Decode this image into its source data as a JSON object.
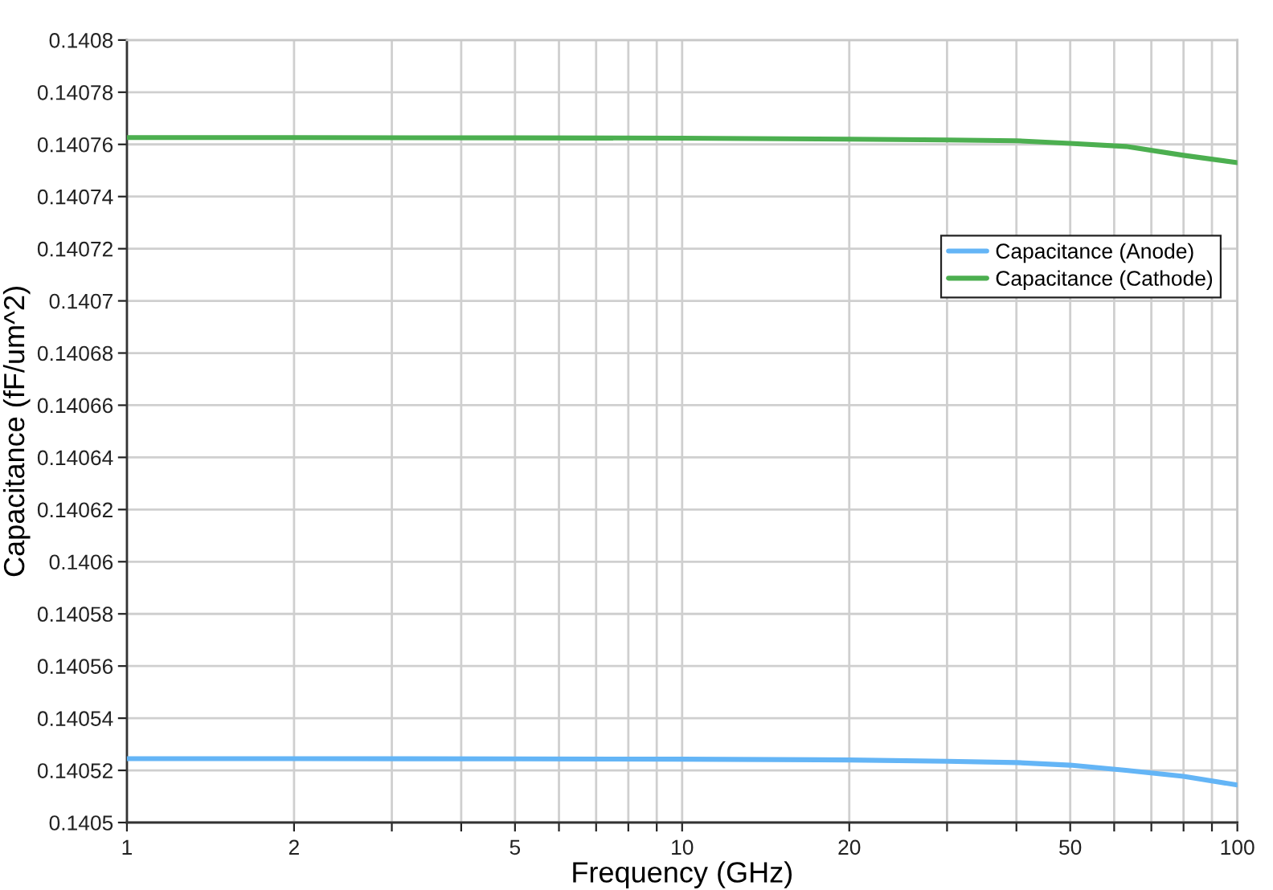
{
  "chart_data": {
    "type": "line",
    "xlabel": "Frequency (GHz)",
    "ylabel": "Capacitance (fF/um^2)",
    "log": "x",
    "grid": true,
    "legend": "top right",
    "marker": "none",
    "line_style": "solid",
    "xlim": [
      1,
      100
    ],
    "xticks": [
      1,
      2,
      {
        "value": 3,
        "label": null
      },
      {
        "value": 4,
        "label": null
      },
      5,
      {
        "value": 6,
        "label": null
      },
      {
        "value": 7,
        "label": null
      },
      {
        "value": 8,
        "label": null
      },
      {
        "value": 9,
        "label": null
      },
      10,
      20,
      {
        "value": 30,
        "label": null
      },
      {
        "value": 40,
        "label": null
      },
      50,
      {
        "value": 60,
        "label": null
      },
      {
        "value": 70,
        "label": null
      },
      {
        "value": 80,
        "label": null
      },
      {
        "value": 90,
        "label": null
      },
      100
    ],
    "ylim": [
      0.1405,
      0.1408
    ],
    "yticks": [
      0.1405,
      0.14052,
      0.14054,
      0.14056,
      0.14058,
      0.1406,
      0.14062,
      0.14064,
      0.14066,
      0.14068,
      0.1407,
      0.14072,
      0.14074,
      0.14076,
      0.14078,
      0.1408
    ],
    "series": [
      {
        "name": "Capacitance (Anode)",
        "color": "#64b5f6",
        "x": [
          1,
          2,
          5,
          10,
          20,
          30,
          40,
          50,
          63,
          80,
          100
        ],
        "values": [
          0.1405245,
          0.1405245,
          0.1405244,
          0.1405243,
          0.140524,
          0.1405235,
          0.140523,
          0.140522,
          0.14052,
          0.1405177,
          0.1405144
        ]
      },
      {
        "name": "Capacitance (Cathode)",
        "color": "#4caf50",
        "x": [
          1,
          2,
          5,
          10,
          20,
          30,
          40,
          50,
          63,
          80,
          100
        ],
        "values": [
          0.1407626,
          0.1407626,
          0.1407625,
          0.1407624,
          0.140762,
          0.1407617,
          0.1407614,
          0.1407604,
          0.1407592,
          0.1407558,
          0.140753
        ]
      }
    ]
  }
}
